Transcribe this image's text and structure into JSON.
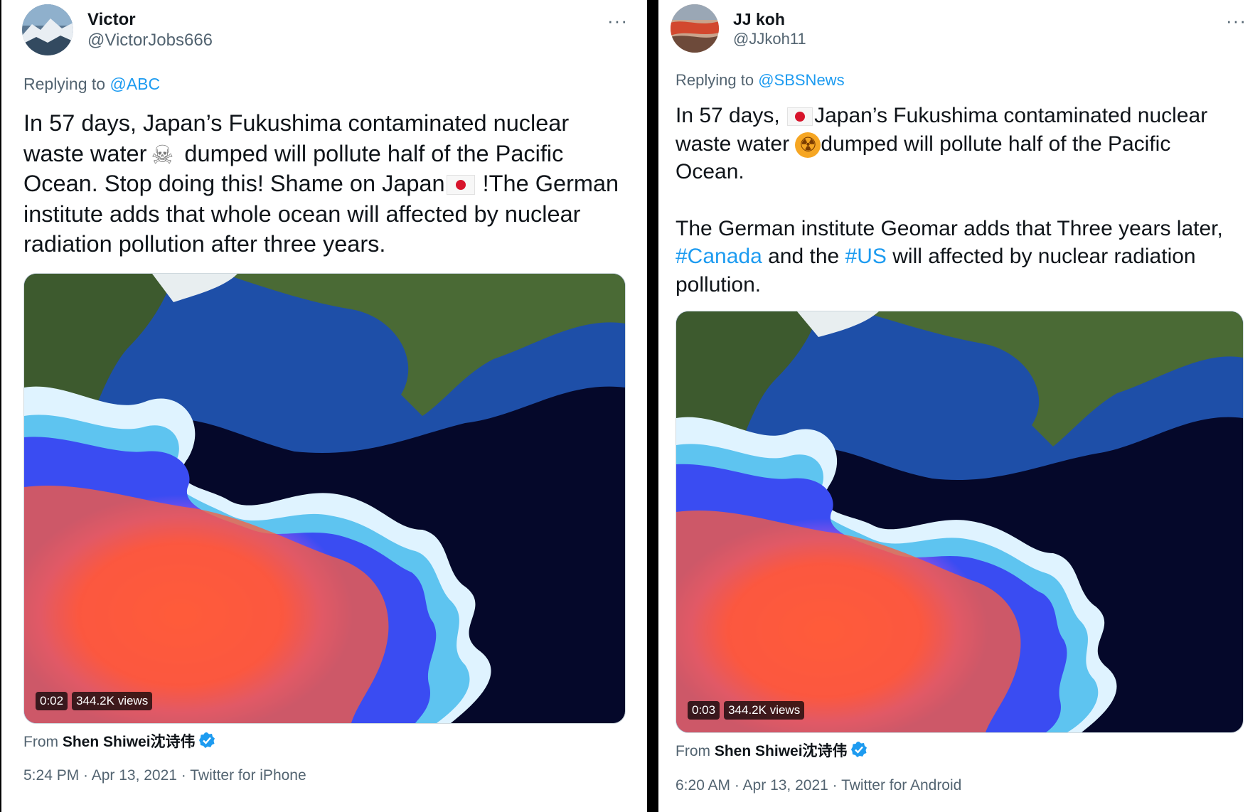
{
  "tweets": [
    {
      "name": "Victor",
      "handle": "@VictorJobs666",
      "more": "···",
      "replying_prefix": "Replying to",
      "replying_to": "@ABC",
      "text": {
        "p1": "In 57 days, Japan’s Fukushima contaminated nuclear waste water",
        "emoji1": "☠",
        "p2": " dumped will pollute half of the Pacific Ocean. Stop doing this! Shame on Japan",
        "p3": " !The German institute adds that whole ocean will affected by nuclear radiation pollution after three years."
      },
      "video_time": "0:02",
      "video_views": "344.2K views",
      "from_prefix": "From",
      "from_source": "Shen Shiwei沈诗伟",
      "timestamp": "5:24 PM · Apr 13, 2021 · Twitter for iPhone"
    },
    {
      "name": "JJ koh",
      "handle": "@JJkoh11",
      "more": "···",
      "replying_prefix": "Replying to",
      "replying_to": "@SBSNews",
      "text": {
        "p1": "In 57 days, ",
        "p2": "Japan’s Fukushima contaminated nuclear waste water ",
        "emoji1": "☢",
        "p3": "dumped will pollute half of the Pacific Ocean.",
        "p4a": "The German institute Geomar adds that Three years later, ",
        "tag1": "#Canada",
        "p4b": " and the ",
        "tag2": "#US",
        "p4c": " will affected by nuclear radiation pollution."
      },
      "video_time": "0:03",
      "video_views": "344.2K views",
      "from_prefix": "From",
      "from_source": "Shen Shiwei沈诗伟",
      "timestamp": "6:20 AM · Apr 13, 2021 · Twitter for Android"
    }
  ],
  "colors": {
    "link": "#1d9bf0",
    "secondary_text": "#536471",
    "primary_text": "#0f1419"
  }
}
